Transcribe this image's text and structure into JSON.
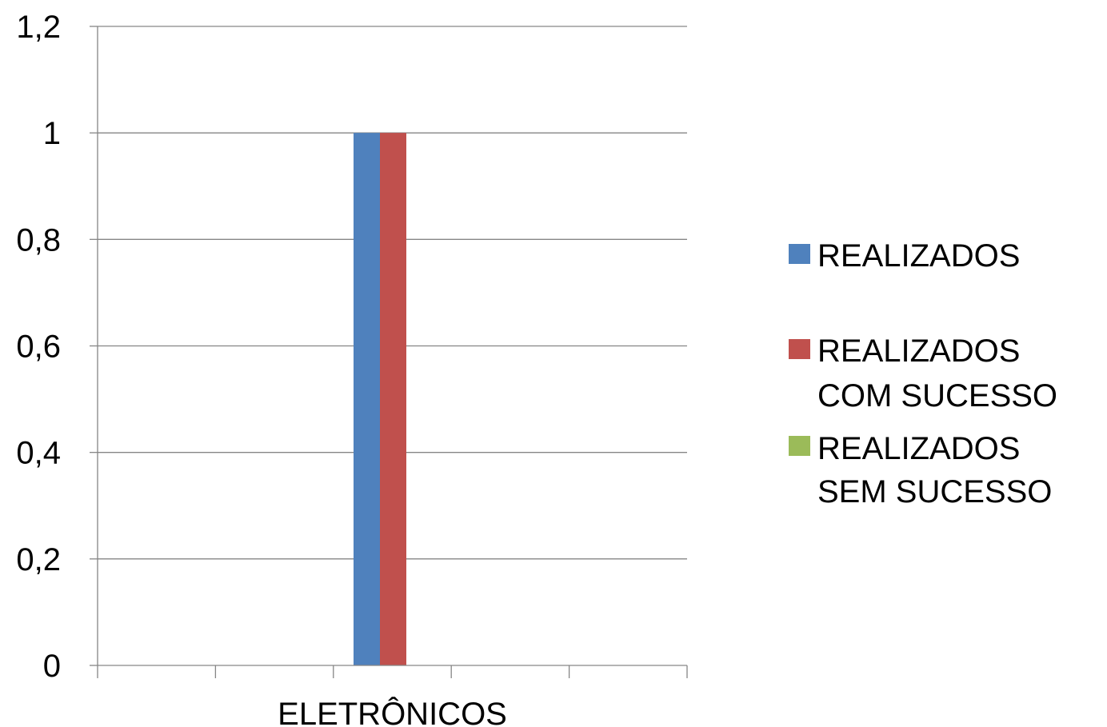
{
  "chart_data": {
    "type": "bar",
    "categories": [
      "ELETRÔNICOS"
    ],
    "series": [
      {
        "name": "REALIZADOS",
        "values": [
          1
        ],
        "color": "#4F81BD"
      },
      {
        "name": "REALIZADOS COM SUCESSO",
        "values": [
          1
        ],
        "color": "#C0504D"
      },
      {
        "name": "REALIZADOS SEM SUCESSO",
        "values": [
          0
        ],
        "color": "#9BBB59"
      }
    ],
    "ylim": [
      0,
      1.2
    ],
    "yticks": [
      "0",
      "0,2",
      "0,4",
      "0,6",
      "0,8",
      "1",
      "1,2"
    ],
    "grid": true,
    "legend": "right",
    "legend_lines": [
      [
        "REALIZADOS"
      ],
      [
        "REALIZADOS",
        "COM SUCESSO"
      ],
      [
        "REALIZADOS",
        "SEM SUCESSO"
      ]
    ]
  }
}
